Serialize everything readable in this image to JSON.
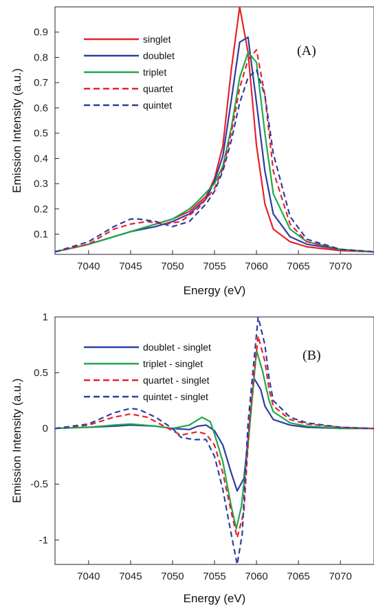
{
  "chart_data": [
    {
      "type": "line",
      "panel_label": "(A)",
      "xlabel": "Energy (eV)",
      "ylabel": "Emission Intensity (a.u.)",
      "xlim": [
        7036,
        7074
      ],
      "ylim": [
        0.02,
        1.0
      ],
      "xticks": [
        7040,
        7045,
        7050,
        7055,
        7060,
        7065,
        7070
      ],
      "yticks": [
        0.1,
        0.2,
        0.3,
        0.4,
        0.5,
        0.6,
        0.7,
        0.8,
        0.9
      ],
      "legend_position": "top-left",
      "series": [
        {
          "name": "singlet",
          "color": "#e8202a",
          "dash": "solid",
          "x": [
            7036,
            7040,
            7043,
            7045,
            7048,
            7050,
            7052,
            7054,
            7055,
            7056,
            7057,
            7058,
            7059,
            7060,
            7061,
            7062,
            7064,
            7066,
            7070,
            7074
          ],
          "y": [
            0.03,
            0.06,
            0.09,
            0.11,
            0.14,
            0.16,
            0.19,
            0.25,
            0.32,
            0.45,
            0.75,
            1.0,
            0.82,
            0.45,
            0.22,
            0.12,
            0.07,
            0.05,
            0.035,
            0.03
          ]
        },
        {
          "name": "doublet",
          "color": "#2a3ea3",
          "dash": "solid",
          "x": [
            7036,
            7040,
            7043,
            7045,
            7048,
            7050,
            7052,
            7054,
            7055,
            7056,
            7057,
            7058,
            7059,
            7060,
            7061,
            7062,
            7064,
            7066,
            7070,
            7074
          ],
          "y": [
            0.03,
            0.06,
            0.09,
            0.11,
            0.13,
            0.15,
            0.18,
            0.24,
            0.31,
            0.41,
            0.63,
            0.86,
            0.88,
            0.62,
            0.35,
            0.18,
            0.09,
            0.06,
            0.04,
            0.03
          ]
        },
        {
          "name": "triplet",
          "color": "#1fa84a",
          "dash": "solid",
          "x": [
            7036,
            7040,
            7043,
            7045,
            7048,
            7050,
            7052,
            7053,
            7055,
            7056,
            7057,
            7058,
            7059,
            7060,
            7061,
            7062,
            7064,
            7066,
            7070,
            7074
          ],
          "y": [
            0.03,
            0.06,
            0.09,
            0.11,
            0.14,
            0.16,
            0.2,
            0.23,
            0.3,
            0.37,
            0.52,
            0.72,
            0.82,
            0.78,
            0.5,
            0.26,
            0.12,
            0.07,
            0.04,
            0.03
          ]
        },
        {
          "name": "quartet",
          "color": "#e8202a",
          "dash": "dashed",
          "x": [
            7036,
            7040,
            7043,
            7045,
            7047,
            7049,
            7051,
            7053,
            7055,
            7056,
            7057,
            7058,
            7059,
            7060,
            7061,
            7062,
            7064,
            7066,
            7070,
            7074
          ],
          "y": [
            0.03,
            0.06,
            0.12,
            0.14,
            0.15,
            0.14,
            0.15,
            0.2,
            0.28,
            0.36,
            0.5,
            0.68,
            0.79,
            0.83,
            0.65,
            0.35,
            0.14,
            0.07,
            0.04,
            0.03
          ]
        },
        {
          "name": "quintet",
          "color": "#2a3ea3",
          "dash": "dashed",
          "x": [
            7036,
            7040,
            7043,
            7045,
            7046,
            7048,
            7050,
            7052,
            7054,
            7055,
            7056,
            7057,
            7058,
            7059,
            7060,
            7061,
            7062,
            7064,
            7066,
            7070,
            7074
          ],
          "y": [
            0.03,
            0.07,
            0.13,
            0.16,
            0.16,
            0.15,
            0.13,
            0.15,
            0.22,
            0.27,
            0.35,
            0.47,
            0.62,
            0.72,
            0.75,
            0.65,
            0.42,
            0.17,
            0.08,
            0.04,
            0.03
          ]
        }
      ]
    },
    {
      "type": "line",
      "panel_label": "(B)",
      "xlabel": "Energy (eV)",
      "ylabel": "Emission Intensity (a.u.)",
      "xlim": [
        7036,
        7074
      ],
      "ylim": [
        -1.22,
        1.0
      ],
      "xticks": [
        7040,
        7045,
        7050,
        7055,
        7060,
        7065,
        7070
      ],
      "yticks": [
        -1,
        -0.5,
        0,
        0.5,
        1
      ],
      "legend_position": "top-left",
      "series": [
        {
          "name": "doublet - singlet",
          "color": "#2a3ea3",
          "dash": "solid",
          "x": [
            7036,
            7040,
            7043,
            7045,
            7048,
            7050,
            7052,
            7053,
            7054,
            7055,
            7056,
            7057,
            7057.7,
            7058.5,
            7059,
            7059.7,
            7060.5,
            7061,
            7062,
            7064,
            7066,
            7070,
            7074
          ],
          "y": [
            0,
            0.01,
            0.02,
            0.03,
            0.02,
            0.0,
            -0.01,
            0.02,
            0.03,
            -0.02,
            -0.15,
            -0.4,
            -0.56,
            -0.45,
            -0.1,
            0.45,
            0.35,
            0.2,
            0.08,
            0.03,
            0.01,
            0.0,
            0.0
          ]
        },
        {
          "name": "triplet - singlet",
          "color": "#1fa84a",
          "dash": "solid",
          "x": [
            7036,
            7040,
            7043,
            7045,
            7048,
            7050,
            7052,
            7053.5,
            7054.5,
            7055,
            7056,
            7057,
            7057.6,
            7058.2,
            7059,
            7060,
            7060.7,
            7061.5,
            7062,
            7064,
            7066,
            7070,
            7074
          ],
          "y": [
            0,
            0.01,
            0.03,
            0.04,
            0.02,
            0.0,
            0.03,
            0.1,
            0.06,
            -0.05,
            -0.3,
            -0.7,
            -0.9,
            -0.7,
            -0.15,
            0.7,
            0.52,
            0.25,
            0.15,
            0.05,
            0.02,
            0.0,
            0.0
          ]
        },
        {
          "name": "quartet - singlet",
          "color": "#e8202a",
          "dash": "dashed",
          "x": [
            7036,
            7040,
            7043,
            7045,
            7047,
            7049,
            7051,
            7053,
            7054,
            7055,
            7056,
            7057,
            7057.7,
            7058.5,
            7059.2,
            7060.2,
            7061,
            7061.5,
            7062,
            7064,
            7066,
            7070,
            7074
          ],
          "y": [
            0,
            0.03,
            0.1,
            0.13,
            0.1,
            0.02,
            -0.06,
            -0.03,
            -0.05,
            -0.15,
            -0.4,
            -0.75,
            -0.98,
            -0.75,
            0.1,
            0.83,
            0.6,
            0.35,
            0.2,
            0.08,
            0.04,
            0.01,
            0.0
          ]
        },
        {
          "name": "quintet - singlet",
          "color": "#2a3ea3",
          "dash": "dashed",
          "x": [
            7036,
            7040,
            7043,
            7045,
            7046,
            7048,
            7050,
            7051,
            7052.5,
            7054,
            7055,
            7056,
            7057,
            7057.7,
            7058.3,
            7059,
            7060.2,
            7061,
            7061.5,
            7062,
            7064,
            7066,
            7070,
            7074
          ],
          "y": [
            0,
            0.04,
            0.14,
            0.18,
            0.17,
            0.1,
            0.0,
            -0.08,
            -0.1,
            -0.1,
            -0.25,
            -0.55,
            -0.95,
            -1.22,
            -0.95,
            0.05,
            1.0,
            0.75,
            0.45,
            0.25,
            0.1,
            0.05,
            0.01,
            0.0
          ]
        }
      ]
    }
  ]
}
